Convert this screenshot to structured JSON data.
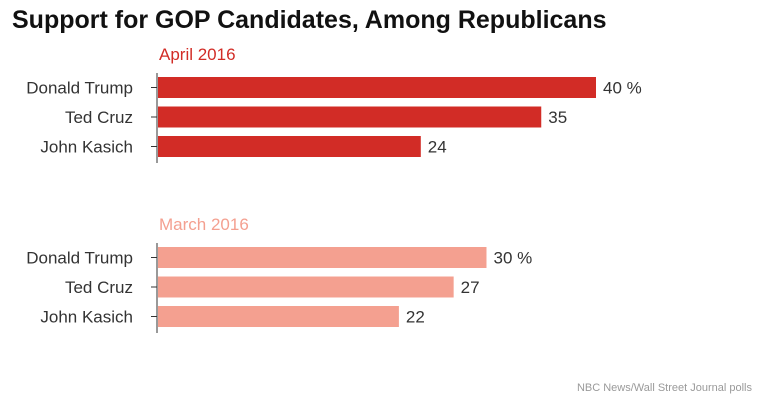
{
  "title": "Support for GOP Candidates, Among Republicans",
  "source": "NBC News/Wall Street Journal polls",
  "colors": {
    "april": "#d22c26",
    "march": "#f4a090",
    "axis": "#333333"
  },
  "chart_data": {
    "type": "bar",
    "orientation": "horizontal",
    "title": "Support for GOP Candidates, Among Republicans",
    "xlim": [
      0,
      45
    ],
    "value_suffix": " %",
    "panels": [
      {
        "name": "April 2016",
        "categories": [
          "Donald Trump",
          "Ted Cruz",
          "John Kasich"
        ],
        "values": [
          40,
          35,
          24
        ]
      },
      {
        "name": "March 2016",
        "categories": [
          "Donald Trump",
          "Ted Cruz",
          "John Kasich"
        ],
        "values": [
          30,
          27,
          22
        ]
      }
    ]
  }
}
